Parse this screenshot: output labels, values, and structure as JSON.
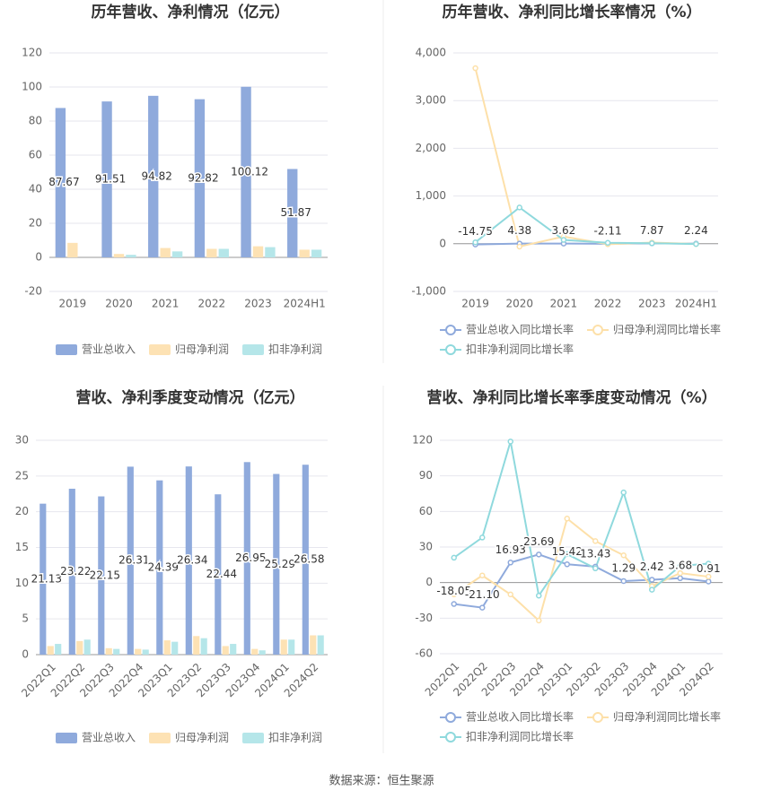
{
  "chart_data": [
    {
      "type": "bar",
      "title": "历年营收、净利情况（亿元）",
      "categories": [
        "2019",
        "2020",
        "2021",
        "2022",
        "2023",
        "2024H1"
      ],
      "series": [
        {
          "name": "营业总收入",
          "color": "#8faadc",
          "values": [
            87.67,
            91.51,
            94.82,
            92.82,
            100.12,
            51.87
          ]
        },
        {
          "name": "归母净利润",
          "color": "#fde2b4",
          "values": [
            8.5,
            2.0,
            5.5,
            5.0,
            6.5,
            4.5
          ]
        },
        {
          "name": "扣非净利润",
          "color": "#b5e6e9",
          "values": [
            0,
            1.5,
            3.5,
            5.0,
            6.0,
            4.5
          ]
        }
      ],
      "ylim": [
        -20,
        120
      ],
      "yticks": [
        -20,
        0,
        20,
        40,
        60,
        80,
        100,
        120
      ],
      "grid": true
    },
    {
      "type": "line",
      "title": "历年营收、净利同比增长率情况（%）",
      "categories": [
        "2019",
        "2020",
        "2021",
        "2022",
        "2023",
        "2024H1"
      ],
      "series": [
        {
          "name": "营业总收入同比增长率",
          "color": "#8faadc",
          "values": [
            -14.75,
            4.38,
            3.62,
            -2.11,
            7.87,
            2.24
          ]
        },
        {
          "name": "归母净利润同比增长率",
          "color": "#fde0a9",
          "values": [
            3680,
            -60,
            150,
            -10,
            25,
            -5
          ]
        },
        {
          "name": "扣非净利润同比增长率",
          "color": "#8fd9dd",
          "values": [
            30,
            760,
            80,
            20,
            10,
            -5
          ]
        }
      ],
      "ylim": [
        -1000,
        4000
      ],
      "yticks": [
        {
          "value": -1000,
          "label": "-1,000"
        },
        0,
        {
          "value": 1000,
          "label": "1,000"
        },
        {
          "value": 2000,
          "label": "2,000"
        },
        {
          "value": 3000,
          "label": "3,000"
        },
        {
          "value": 4000,
          "label": "4,000"
        }
      ],
      "grid": true
    },
    {
      "type": "bar",
      "title": "营收、净利季度变动情况（亿元）",
      "categories": [
        "2022Q1",
        "2022Q2",
        "2022Q3",
        "2022Q4",
        "2023Q1",
        "2023Q2",
        "2023Q3",
        "2023Q4",
        "2024Q1",
        "2024Q2"
      ],
      "series": [
        {
          "name": "营业总收入",
          "color": "#8faadc",
          "values": [
            21.13,
            23.22,
            22.15,
            26.31,
            24.39,
            26.34,
            22.44,
            26.95,
            25.29,
            26.58
          ]
        },
        {
          "name": "归母净利润",
          "color": "#fde2b4",
          "values": [
            1.2,
            1.9,
            0.9,
            0.8,
            2.0,
            2.6,
            1.2,
            0.8,
            2.1,
            2.7
          ]
        },
        {
          "name": "扣非净利润",
          "color": "#b5e6e9",
          "values": [
            1.5,
            2.1,
            0.8,
            0.7,
            1.8,
            2.3,
            1.5,
            0.6,
            2.1,
            2.7
          ]
        }
      ],
      "ylim": [
        0,
        30
      ],
      "yticks": [
        0,
        5,
        10,
        15,
        20,
        25,
        30
      ],
      "grid": true
    },
    {
      "type": "line",
      "title": "营收、净利同比增长率季度变动情况（%）",
      "categories": [
        "2022Q1",
        "2022Q2",
        "2022Q3",
        "2022Q4",
        "2023Q1",
        "2023Q2",
        "2023Q3",
        "2023Q4",
        "2024Q1",
        "2024Q2"
      ],
      "series": [
        {
          "name": "营业总收入同比增长率",
          "color": "#8faadc",
          "values": [
            -18.05,
            -21.1,
            16.93,
            23.69,
            15.42,
            13.43,
            1.29,
            2.42,
            3.68,
            0.91
          ],
          "value_labels": [
            "-18.05",
            "-21.10",
            "16.93",
            "23.69",
            "15.42",
            "13.43",
            "1.29",
            "2.42",
            "3.68",
            "0.91"
          ]
        },
        {
          "name": "归母净利润同比增长率",
          "color": "#fde0a9",
          "values": [
            -10,
            6,
            -10,
            -32,
            54,
            35,
            23,
            -3,
            8,
            5
          ]
        },
        {
          "name": "扣非净利润同比增长率",
          "color": "#8fd9dd",
          "values": [
            21,
            38,
            119,
            -11,
            24,
            12,
            76,
            -6,
            14,
            16
          ]
        }
      ],
      "ylim": [
        -60,
        120
      ],
      "yticks": [
        -60,
        -30,
        0,
        30,
        60,
        90,
        120
      ],
      "grid": true
    }
  ],
  "source": "数据来源：恒生聚源"
}
